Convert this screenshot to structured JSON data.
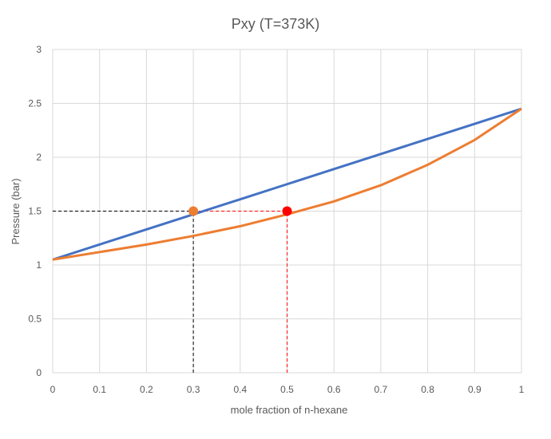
{
  "chart_data": {
    "type": "line",
    "title": "Pxy (T=373K)",
    "xlabel": "mole fraction of n-hexane",
    "ylabel": "Pressure (bar)",
    "xlim": [
      0,
      1
    ],
    "ylim": [
      0,
      3
    ],
    "xticks": [
      "0",
      "0.1",
      "0.2",
      "0.3",
      "0.4",
      "0.5",
      "0.6",
      "0.7",
      "0.8",
      "0.9",
      "1"
    ],
    "yticks": [
      "0",
      "0.5",
      "1",
      "1.5",
      "2",
      "2.5",
      "3"
    ],
    "grid": true,
    "series": [
      {
        "color": "#4472C4",
        "x": [
          0,
          0.1,
          0.2,
          0.3,
          0.4,
          0.5,
          0.6,
          0.7,
          0.8,
          0.9,
          1
        ],
        "y": [
          1.05,
          1.19,
          1.33,
          1.47,
          1.61,
          1.75,
          1.89,
          2.03,
          2.17,
          2.31,
          2.45
        ]
      },
      {
        "color": "#ED7D31",
        "x": [
          0,
          0.1,
          0.2,
          0.3,
          0.4,
          0.5,
          0.6,
          0.7,
          0.8,
          0.9,
          1
        ],
        "y": [
          1.05,
          1.12,
          1.19,
          1.27,
          1.36,
          1.47,
          1.59,
          1.74,
          1.93,
          2.16,
          2.45
        ]
      }
    ],
    "points": [
      {
        "x": 0.3,
        "y": 1.5,
        "color": "#ED7D31"
      },
      {
        "x": 0.5,
        "y": 1.5,
        "color": "#FF0000"
      }
    ],
    "guides": [
      {
        "x1": 0,
        "y1": 1.5,
        "x2": 0.3,
        "y2": 1.5,
        "color": "#000000"
      },
      {
        "x1": 0.3,
        "y1": 1.5,
        "x2": 0.5,
        "y2": 1.5,
        "color": "#FF0000"
      },
      {
        "x1": 0.3,
        "y1": 0,
        "x2": 0.3,
        "y2": 1.5,
        "color": "#000000"
      },
      {
        "x1": 0.5,
        "y1": 0,
        "x2": 0.5,
        "y2": 1.5,
        "color": "#FF0000"
      }
    ]
  }
}
